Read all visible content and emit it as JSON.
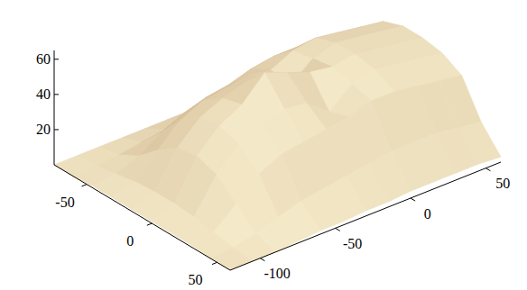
{
  "chart_data": {
    "type": "surface",
    "x": [
      -75,
      -60,
      -45,
      -30,
      -15,
      0,
      15,
      30,
      45,
      60
    ],
    "y": [
      -120,
      -105,
      -90,
      -75,
      -60,
      -45,
      -30,
      -15,
      0,
      15,
      30,
      45,
      60
    ],
    "z": [
      [
        0,
        0,
        1,
        1,
        1,
        1,
        1,
        1,
        0,
        0
      ],
      [
        0,
        1,
        3,
        5,
        6,
        6,
        5,
        3,
        1,
        0
      ],
      [
        0,
        2,
        8,
        18,
        26,
        28,
        24,
        14,
        4,
        0
      ],
      [
        0,
        4,
        16,
        30,
        38,
        40,
        36,
        26,
        8,
        1
      ],
      [
        0,
        6,
        22,
        36,
        44,
        47,
        42,
        32,
        12,
        2
      ],
      [
        0,
        8,
        26,
        38,
        48,
        60,
        46,
        34,
        14,
        2
      ],
      [
        0,
        9,
        28,
        40,
        46,
        55,
        44,
        36,
        16,
        3
      ],
      [
        0,
        10,
        32,
        38,
        36,
        50,
        34,
        38,
        18,
        3
      ],
      [
        0,
        12,
        34,
        44,
        46,
        48,
        45,
        42,
        20,
        4
      ],
      [
        0,
        12,
        34,
        46,
        50,
        50,
        48,
        42,
        20,
        4
      ],
      [
        0,
        12,
        32,
        44,
        48,
        48,
        46,
        40,
        20,
        4
      ],
      [
        0,
        10,
        30,
        42,
        46,
        46,
        44,
        38,
        18,
        4
      ],
      [
        0,
        8,
        28,
        40,
        44,
        44,
        42,
        36,
        16,
        3
      ]
    ],
    "xlim": [
      -75,
      60
    ],
    "xticks": [
      -50,
      0,
      50
    ],
    "ylim": [
      -120,
      60
    ],
    "yticks": [
      -100,
      -50,
      0,
      50
    ],
    "zlim": [
      0,
      65
    ],
    "zticks": [
      20,
      40,
      60
    ],
    "color": "#f4e9c8"
  }
}
